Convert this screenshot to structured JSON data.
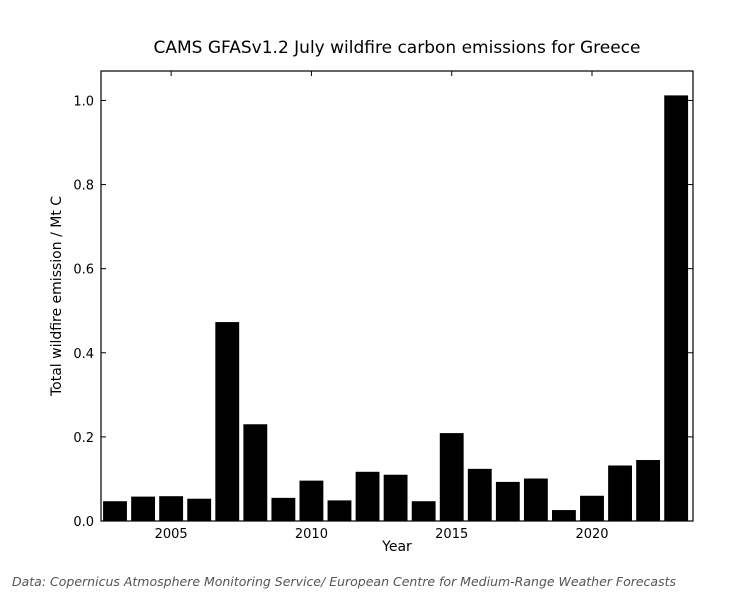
{
  "chart_data": {
    "type": "bar",
    "title": "CAMS GFASv1.2 July wildfire carbon emissions for Greece",
    "xlabel": "Year",
    "ylabel": "Total wildfire emission / Mt C",
    "x": [
      2003,
      2004,
      2005,
      2006,
      2007,
      2008,
      2009,
      2010,
      2011,
      2012,
      2013,
      2014,
      2015,
      2016,
      2017,
      2018,
      2019,
      2020,
      2021,
      2022,
      2023
    ],
    "values": [
      0.047,
      0.058,
      0.059,
      0.053,
      0.473,
      0.23,
      0.055,
      0.096,
      0.049,
      0.117,
      0.11,
      0.047,
      0.209,
      0.124,
      0.093,
      0.101,
      0.026,
      0.06,
      0.132,
      0.145,
      1.012
    ],
    "xlim": [
      2002.5,
      2023.6
    ],
    "ylim": [
      0,
      1.07
    ],
    "xticks": [
      "2005",
      "2010",
      "2015",
      "2020"
    ],
    "yticks": [
      "0.0",
      "0.2",
      "0.4",
      "0.6",
      "0.8",
      "1.0"
    ],
    "bar_color": "#000000",
    "grid": false,
    "legend": "none"
  },
  "footer": {
    "credit": "Data: Copernicus Atmosphere Monitoring Service/ European Centre for Medium-Range Weather Forecasts"
  }
}
